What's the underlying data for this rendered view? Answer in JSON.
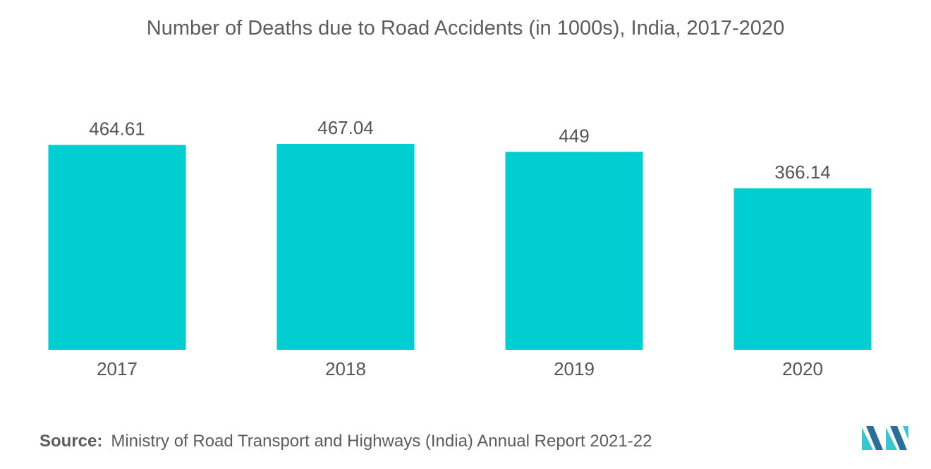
{
  "title": "Number of Deaths due to Road Accidents (in 1000s), India, 2017-2020",
  "source": {
    "label": "Source:",
    "text": "Ministry of Road Transport and Highways (India) Annual Report 2021-22"
  },
  "logo": {
    "icon": "mordor-intelligence-logo-icon"
  },
  "colors": {
    "bar": "#00CED1",
    "text": "#555555",
    "logo_dark": "#2a6f97",
    "logo_light": "#38c6cf"
  },
  "chart_data": {
    "type": "bar",
    "title": "Number of Deaths due to Road Accidents (in 1000s), India, 2017-2020",
    "categories": [
      "2017",
      "2018",
      "2019",
      "2020"
    ],
    "values": [
      464.61,
      467.04,
      449,
      366.14
    ],
    "value_labels": [
      "464.61",
      "467.04",
      "449",
      "366.14"
    ],
    "xlabel": "",
    "ylabel": "",
    "ylim": [
      0,
      467.04
    ],
    "grid": false,
    "legend": "none"
  }
}
